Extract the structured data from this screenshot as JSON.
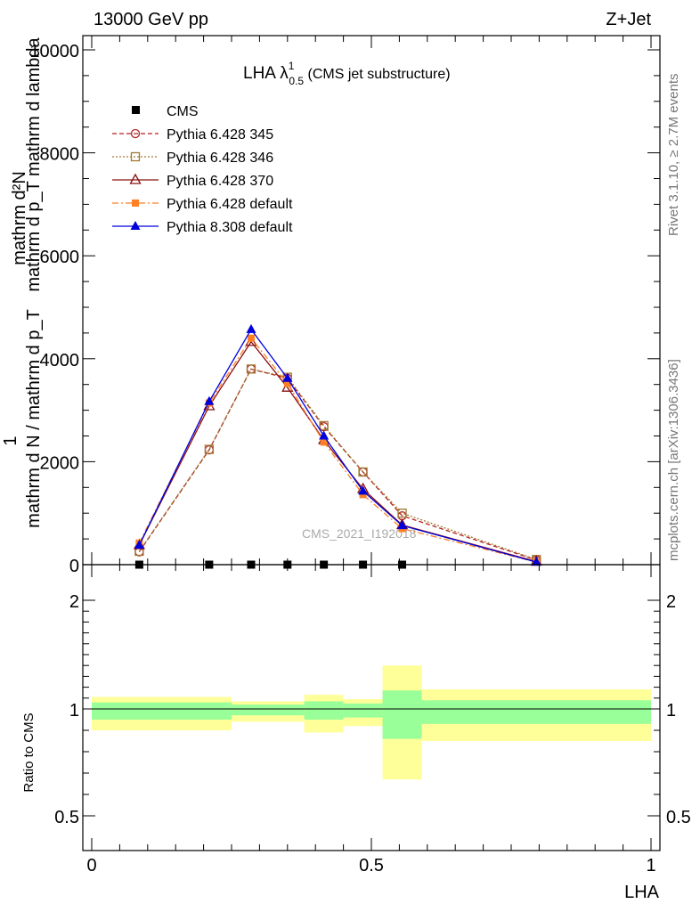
{
  "header": {
    "left": "13000 GeV pp",
    "right": "Z+Jet"
  },
  "side": {
    "rivet": "Rivet 3.1.10, ≥ 2.7M events",
    "mcplots": "mcplots.cern.ch [arXiv:1306.3436]"
  },
  "plot_title": {
    "main": "LHA λ",
    "sup": "1",
    "sub": "0.5",
    "note": " (CMS jet substructure)"
  },
  "watermark": "CMS_2021_I192018",
  "ylabel_upper": {
    "l1": "mathrm d²N",
    "l2": "mathrm d p_T mathrm d lambda",
    "frac": "1",
    "l3": "mathrm d N / mathrm d p_T"
  },
  "ylabel_lower": "Ratio to CMS",
  "xlabel": "LHA",
  "colors": {
    "p345": "#b22222",
    "p346": "#a07830",
    "p370": "#8b1010",
    "pdef": "#ff7f27",
    "p8": "#0000dd",
    "band_inner": "#99ff99",
    "band_outer": "#ffff99"
  },
  "chart_data": [
    {
      "type": "line",
      "xlim": [
        0,
        1
      ],
      "ylim": [
        0,
        10000
      ],
      "yticks": [
        0,
        2000,
        4000,
        6000,
        8000,
        10000
      ],
      "ytick_labels": [
        "0",
        "2000",
        "4000",
        "6000",
        "8000",
        "10000"
      ],
      "x": [
        0.085,
        0.21,
        0.285,
        0.35,
        0.415,
        0.485,
        0.555,
        0.795
      ],
      "data": {
        "name": "CMS",
        "x": [
          0.085,
          0.21,
          0.285,
          0.35,
          0.415,
          0.485,
          0.555
        ],
        "values": [
          0,
          0,
          0,
          0,
          0,
          0,
          0
        ]
      },
      "series": [
        {
          "name": "Pythia 6.428 345",
          "values": [
            250,
            2230,
            3800,
            3620,
            2680,
            1800,
            950,
            90
          ]
        },
        {
          "name": "Pythia 6.428 346",
          "values": [
            260,
            2240,
            3800,
            3640,
            2700,
            1800,
            1000,
            100
          ]
        },
        {
          "name": "Pythia 6.428 370",
          "values": [
            380,
            3080,
            4330,
            3440,
            2420,
            1470,
            770,
            60
          ]
        },
        {
          "name": "Pythia 6.428 default",
          "values": [
            420,
            3140,
            4400,
            3520,
            2380,
            1360,
            700,
            50
          ]
        },
        {
          "name": "Pythia 8.308 default",
          "values": [
            380,
            3170,
            4570,
            3620,
            2500,
            1430,
            760,
            50
          ]
        }
      ],
      "legend": "top-left"
    },
    {
      "type": "area",
      "xlim": [
        0,
        1
      ],
      "ylim": [
        0.4,
        2.4
      ],
      "yticks": [
        0.5,
        1,
        2
      ],
      "ytick_labels": [
        "0.5",
        "1",
        "2"
      ],
      "xticks": [
        0,
        0.5,
        1
      ],
      "xtick_labels": [
        "0",
        "0.5",
        "1"
      ],
      "reference_line": 1,
      "bins": [
        {
          "lo": 0.0,
          "hi": 0.25,
          "inner": [
            0.95,
            1.06
          ],
          "outer": [
            0.9,
            1.11
          ]
        },
        {
          "lo": 0.25,
          "hi": 0.32,
          "inner": [
            0.97,
            1.04
          ],
          "outer": [
            0.94,
            1.07
          ]
        },
        {
          "lo": 0.32,
          "hi": 0.38,
          "inner": [
            0.97,
            1.04
          ],
          "outer": [
            0.94,
            1.07
          ]
        },
        {
          "lo": 0.38,
          "hi": 0.45,
          "inner": [
            0.95,
            1.07
          ],
          "outer": [
            0.89,
            1.13
          ]
        },
        {
          "lo": 0.45,
          "hi": 0.52,
          "inner": [
            0.96,
            1.05
          ],
          "outer": [
            0.92,
            1.09
          ]
        },
        {
          "lo": 0.52,
          "hi": 0.59,
          "inner": [
            0.86,
            1.17
          ],
          "outer": [
            0.67,
            1.4
          ]
        },
        {
          "lo": 0.59,
          "hi": 1.0,
          "inner": [
            0.93,
            1.08
          ],
          "outer": [
            0.85,
            1.18
          ]
        }
      ]
    }
  ]
}
